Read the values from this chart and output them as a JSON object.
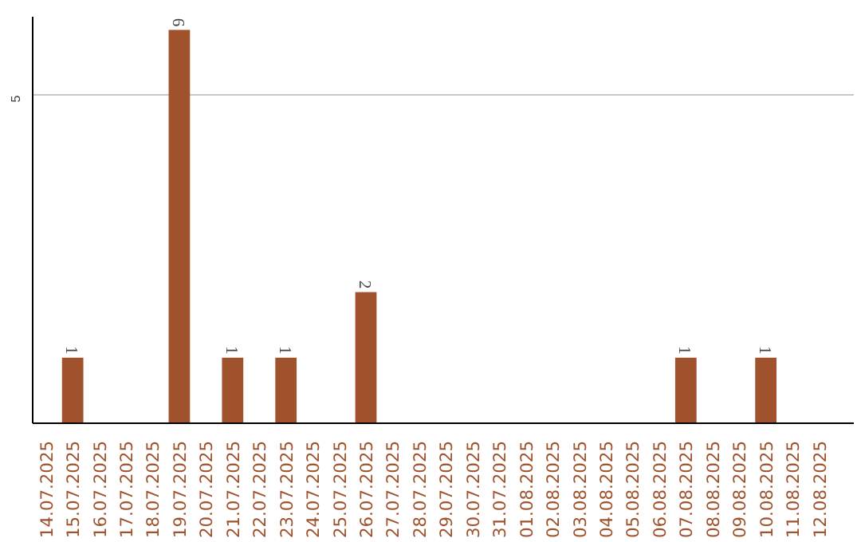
{
  "chart_data": {
    "type": "bar",
    "categories": [
      "14.07.2025",
      "15.07.2025",
      "16.07.2025",
      "17.07.2025",
      "18.07.2025",
      "19.07.2025",
      "20.07.2025",
      "21.07.2025",
      "22.07.2025",
      "23.07.2025",
      "24.07.2025",
      "25.07.2025",
      "26.07.2025",
      "27.07.2025",
      "28.07.2025",
      "29.07.2025",
      "30.07.2025",
      "31.07.2025",
      "01.08.2025",
      "02.08.2025",
      "03.08.2025",
      "04.08.2025",
      "05.08.2025",
      "06.08.2025",
      "07.08.2025",
      "08.08.2025",
      "09.08.2025",
      "10.08.2025",
      "11.08.2025",
      "12.08.2025"
    ],
    "values": [
      0,
      1,
      0,
      0,
      0,
      6,
      0,
      1,
      0,
      1,
      0,
      0,
      2,
      0,
      0,
      0,
      0,
      0,
      0,
      0,
      0,
      0,
      0,
      0,
      1,
      0,
      0,
      1,
      0,
      0
    ],
    "color": "#a0522d",
    "value_labels": [
      null,
      "1",
      null,
      null,
      null,
      "6",
      null,
      "1",
      null,
      "1",
      null,
      null,
      "2",
      null,
      null,
      null,
      null,
      null,
      null,
      null,
      null,
      null,
      null,
      null,
      "1",
      null,
      null,
      "1",
      null,
      null
    ],
    "ylim": [
      0,
      6.2
    ],
    "yticks": [
      5
    ],
    "grid": "y"
  }
}
